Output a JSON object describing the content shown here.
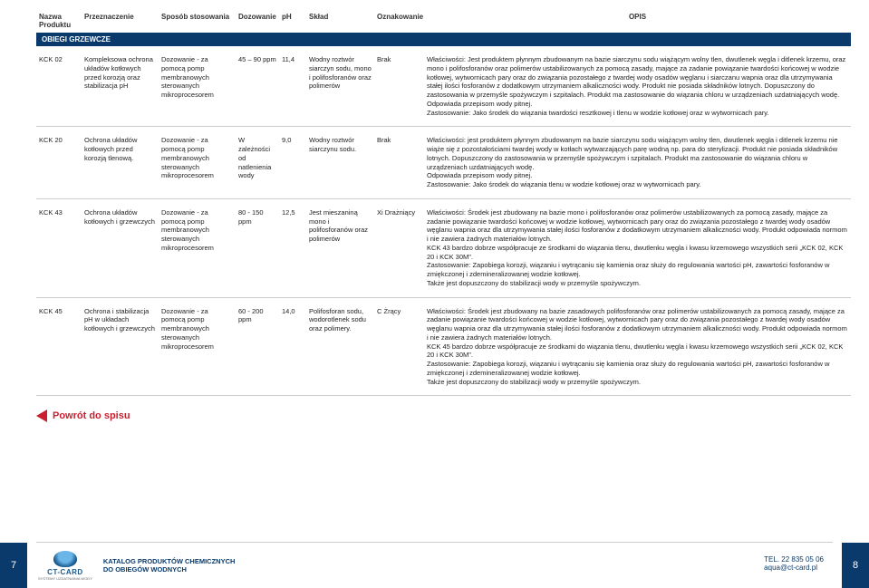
{
  "headers": {
    "name": "Nazwa Produktu",
    "dest": "Przeznaczenie",
    "method": "Sposób stosowania",
    "dose": "Dozowanie",
    "ph": "pH",
    "comp": "Skład",
    "mark": "Oznakowanie",
    "desc": "OPIS"
  },
  "section": "OBIEGI GRZEWCZE",
  "rows": [
    {
      "name": "KCK 02",
      "dest": "Kompleksowa ochrona układów kotłowych przed korozją oraz stabilizacja pH",
      "method": "Dozowanie - za pomocą pomp membranowych sterowanych mikroprocesorem",
      "dose": "45 – 90 ppm",
      "ph": "11,4",
      "comp": "Wodny roztwór siarczyn sodu, mono i polifosforanów oraz polimerów",
      "mark": "Brak",
      "desc": "Właściwości: Jest produktem płynnym zbudowanym na bazie siarczynu sodu wiążącym wolny tlen, dwutlenek węgla i ditlenek krzemu, oraz mono i polifosforanów oraz polimerów ustabilizowanych za pomocą zasady, mające za zadanie powiązanie twardości końcowej w wodzie kotłowej, wytwornicach pary oraz do związania pozostałego z twardej wody osadów węglanu i siarczanu wapnia oraz dla utrzymywania stałej ilości fosforanów z dodatkowym utrzymaniem alkaliczności wody. Produkt nie posiada składników lotnych. Dopuszczony do zastosowania w przemyśle spożywczym i szpitalach. Produkt ma zastosowanie do wiązania chloru w urządzeniach uzdatniających wodę.\nOdpowiada przepisom wody pitnej.\nZastosowanie: Jako środek do wiązania twardości resztkowej i tlenu w wodzie kotłowej oraz w wytwornicach pary."
    },
    {
      "name": "KCK 20",
      "dest": "Ochrona układów kotłowych przed korozją tlenową.",
      "method": "Dozowanie - za pomocą pomp membranowych sterowanych mikroprocesorem",
      "dose": "W zależności od natlenienia wody",
      "ph": "9,0",
      "comp": "Wodny roztwór siarczynu sodu.",
      "mark": "Brak",
      "desc": "Właściwości: jest produktem płynnym zbudowanym na bazie siarczynu sodu wiążącym wolny tlen, dwutlenek węgla i ditlenek krzemu nie wiąże się z pozostałościami twardej wody w kotłach wytwarzających parę wodną np. para do sterylizacji. Produkt nie posiada składników lotnych. Dopuszczony do zastosowania w przemyśle spożywczym i szpitalach. Produkt ma zastosowanie do wiązania chloru w urządzeniach uzdatniających wodę.\nOdpowiada przepisom wody pitnej.\nZastosowanie: Jako środek do wiązania tlenu w wodzie kotłowej oraz w wytwornicach pary."
    },
    {
      "name": "KCK 43",
      "dest": "Ochrona układów kotłowych i grzewczych",
      "method": "Dozowanie - za pomocą pomp membranowych sterowanych mikroprocesorem",
      "dose": "80 - 150 ppm",
      "ph": "12,5",
      "comp": "Jest mieszaniną mono i polifosforanów oraz polimerów",
      "mark": "Xi Drażniący",
      "desc": "Właściwości: Środek jest zbudowany na bazie mono i polifosforanów oraz polimerów ustabilizowanych za pomocą zasady, mające za zadanie powiązanie twardości końcowej w wodzie kotłowej, wytwornicach pary oraz do związania pozostałego z twardej wody osadów węglanu wapnia oraz dla utrzymywania stałej ilości fosforanów z dodatkowym utrzymaniem alkaliczności wody. Produkt odpowiada normom i nie zawiera żadnych materiałów lotnych.\nKCK 43 bardzo dobrze współpracuje ze środkami do wiązania tlenu, dwutlenku węgla i kwasu krzemowego wszystkich serii „KCK 02, KCK 20 i KCK 30M\".\nZastosowanie: Zapobiega korozji, wiązaniu i wytrącaniu się kamienia oraz służy do regulowania wartości pH, zawartości fosforanów w zmiękczonej i zdemineralizowanej wodzie kotłowej.\nTakże jest dopuszczony do stabilizacji wody w przemyśle spożywczym."
    },
    {
      "name": "KCK 45",
      "dest": "Ochrona i stabilizacja pH w układach kotłowych i grzewczych",
      "method": "Dozowanie - za pomocą pomp membranowych sterowanych mikroprocesorem",
      "dose": "60 - 200 ppm",
      "ph": "14,0",
      "comp": "Polifosforan sodu, wodorotlenek sodu oraz polimery.",
      "mark": "C Żrący",
      "desc": "Właściwości: Środek jest zbudowany na bazie zasadowych polifosforanów oraz polimerów ustabilizowanych za pomocą zasady, mające za zadanie powiązanie twardości końcowej w wodzie kotłowej, wytwornicach pary oraz do związania pozostałego z twardej wody osadów węglanu wapnia oraz dla utrzymywania stałej ilości fosforanów z dodatkowym utrzymaniem alkaliczności wody. Produkt odpowiada normom i nie zawiera żadnych materiałów lotnych.\nKCK 45 bardzo dobrze współpracuje ze środkami do wiązania tlenu, dwutlenku węgla i kwasu krzemowego wszystkich serii „KCK 02, KCK 20 i KCK 30M\".\nZastosowanie: Zapobiega korozji, wiązaniu i wytrącaniu się kamienia oraz służy do regulowania wartości pH, zawartości fosforanów w zmiękczonej i zdemineralizowanej wodzie kotłowej.\nTakże jest dopuszczony do stabilizacji wody w przemyśle spożywczym."
    }
  ],
  "back": "Powrót do spisu",
  "catalog_line1": "KATALOG PRODUKTÓW CHEMICZNYCH",
  "catalog_line2": "DO OBIEGÓW WODNYCH",
  "logo_name": "CT-CARD",
  "logo_sub": "SYSTEMY UZDATNIANIA WODY",
  "tel": "TEL. 22 835 05 06",
  "email": "aqua@ct-card.pl",
  "page_left": "7",
  "page_right": "8"
}
